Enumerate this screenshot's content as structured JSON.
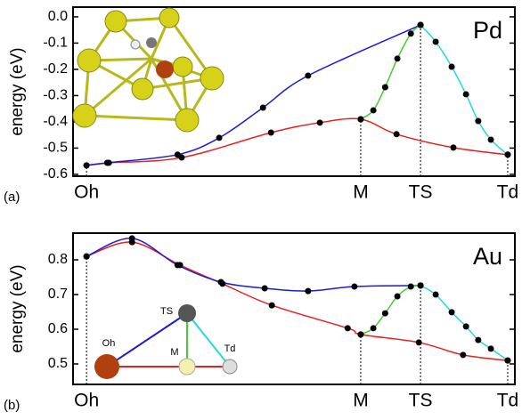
{
  "charts": [
    {
      "type": "line",
      "panel_label": "(a)",
      "annotation": "Pd",
      "ylabel": "energy (eV)",
      "xlim": [
        -0.032,
        1.017
      ],
      "ylim": [
        -0.607,
        0.037
      ],
      "xticks": [
        {
          "value": 0,
          "label": "Oh"
        },
        {
          "value": 0.651,
          "label": "M"
        },
        {
          "value": 0.793,
          "label": "TS"
        },
        {
          "value": 1,
          "label": "Td"
        }
      ],
      "yticks": [
        {
          "value": 0,
          "label": "0.0"
        },
        -0.1,
        -0.2,
        -0.3,
        -0.4,
        -0.5,
        -0.6
      ],
      "series": [
        {
          "color": "#e8201e",
          "x": [
            0,
            0.053,
            0.226,
            0.438,
            0.554,
            0.651,
            0.736,
            0.871,
            1
          ],
          "values": [
            -0.566,
            -0.556,
            -0.536,
            -0.441,
            -0.403,
            -0.39,
            -0.447,
            -0.498,
            -0.525
          ]
        },
        {
          "color": "#1a1ad8",
          "x": [
            0,
            0.049,
            0.216,
            0.315,
            0.419,
            0.526,
            0.793
          ],
          "values": [
            -0.566,
            -0.556,
            -0.525,
            -0.461,
            -0.346,
            -0.224,
            -0.031
          ]
        },
        {
          "color": "#44cc33",
          "x": [
            0.651,
            0.681,
            0.709,
            0.738,
            0.77,
            0.793
          ],
          "values": [
            -0.39,
            -0.356,
            -0.268,
            -0.159,
            -0.064,
            -0.031
          ]
        },
        {
          "color": "#22d8e0",
          "x": [
            0.793,
            0.829,
            0.867,
            0.901,
            0.93,
            0.96,
            1
          ],
          "values": [
            -0.031,
            -0.095,
            -0.19,
            -0.295,
            -0.397,
            -0.468,
            -0.525
          ]
        }
      ]
    },
    {
      "type": "line",
      "panel_label": "(b)",
      "annotation": "Au",
      "ylabel": "energy (eV)",
      "xlim": [
        -0.032,
        1.017
      ],
      "ylim": [
        0.441,
        0.877
      ],
      "xticks": [
        {
          "value": 0,
          "label": "Oh"
        },
        {
          "value": 0.651,
          "label": "M"
        },
        {
          "value": 0.793,
          "label": "TS"
        },
        {
          "value": 1,
          "label": "Td"
        }
      ],
      "yticks": [
        0.8,
        0.7,
        0.6,
        0.5
      ],
      "inset_labels": [
        "TS",
        "Oh",
        "M",
        "Td"
      ],
      "series": [
        {
          "color": "#e8201e",
          "x": [
            0,
            0.108,
            0.222,
            0.323,
            0.44,
            0.62,
            0.651,
            0.789,
            0.894,
            1
          ],
          "values": [
            0.81,
            0.851,
            0.785,
            0.731,
            0.669,
            0.603,
            0.585,
            0.562,
            0.526,
            0.51
          ]
        },
        {
          "color": "#1a1ad8",
          "x": [
            0,
            0.108,
            0.216,
            0.319,
            0.423,
            0.526,
            0.636,
            0.793
          ],
          "values": [
            0.81,
            0.862,
            0.785,
            0.736,
            0.718,
            0.71,
            0.723,
            0.726
          ]
        },
        {
          "color": "#44cc33",
          "x": [
            0.651,
            0.681,
            0.709,
            0.738,
            0.77,
            0.793
          ],
          "values": [
            0.585,
            0.603,
            0.646,
            0.695,
            0.723,
            0.726
          ]
        },
        {
          "color": "#22d8e0",
          "x": [
            0.793,
            0.829,
            0.867,
            0.901,
            0.93,
            0.96,
            1
          ],
          "values": [
            0.726,
            0.7,
            0.649,
            0.608,
            0.569,
            0.544,
            0.51
          ]
        }
      ]
    }
  ]
}
